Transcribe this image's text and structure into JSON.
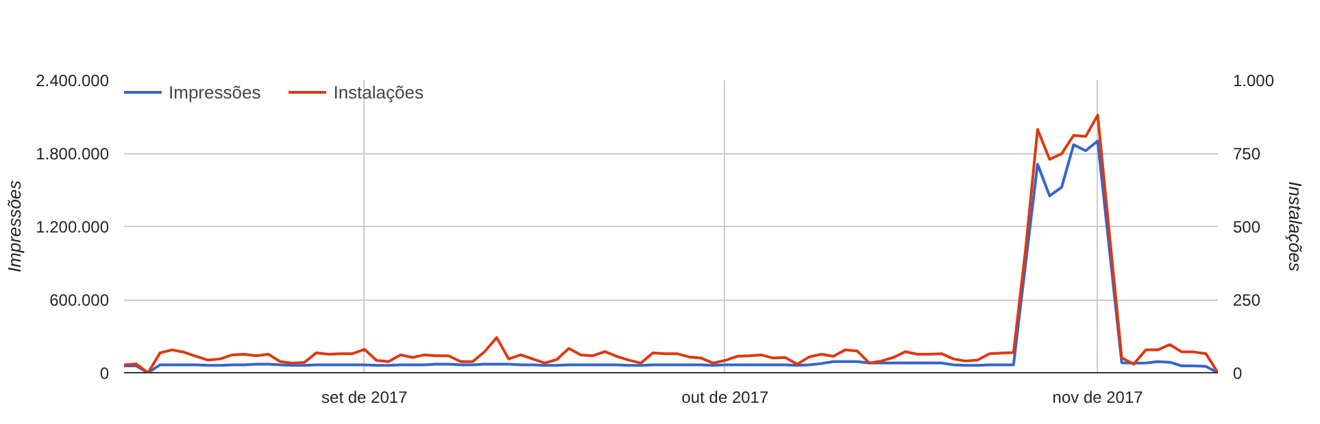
{
  "chart_data": {
    "type": "line",
    "ylabel": "Impressões",
    "y2label": "Instalações",
    "x": [
      "2017-08-12",
      "2017-08-13",
      "2017-08-14",
      "2017-08-15",
      "2017-08-16",
      "2017-08-17",
      "2017-08-18",
      "2017-08-19",
      "2017-08-20",
      "2017-08-21",
      "2017-08-22",
      "2017-08-23",
      "2017-08-24",
      "2017-08-25",
      "2017-08-26",
      "2017-08-27",
      "2017-08-28",
      "2017-08-29",
      "2017-08-30",
      "2017-08-31",
      "2017-09-01",
      "2017-09-02",
      "2017-09-03",
      "2017-09-04",
      "2017-09-05",
      "2017-09-06",
      "2017-09-07",
      "2017-09-08",
      "2017-09-09",
      "2017-09-10",
      "2017-09-11",
      "2017-09-12",
      "2017-09-13",
      "2017-09-14",
      "2017-09-15",
      "2017-09-16",
      "2017-09-17",
      "2017-09-18",
      "2017-09-19",
      "2017-09-20",
      "2017-09-21",
      "2017-09-22",
      "2017-09-23",
      "2017-09-24",
      "2017-09-25",
      "2017-09-26",
      "2017-09-27",
      "2017-09-28",
      "2017-09-29",
      "2017-09-30",
      "2017-10-01",
      "2017-10-02",
      "2017-10-03",
      "2017-10-04",
      "2017-10-05",
      "2017-10-06",
      "2017-10-07",
      "2017-10-08",
      "2017-10-09",
      "2017-10-10",
      "2017-10-11",
      "2017-10-12",
      "2017-10-13",
      "2017-10-14",
      "2017-10-15",
      "2017-10-16",
      "2017-10-17",
      "2017-10-18",
      "2017-10-19",
      "2017-10-20",
      "2017-10-21",
      "2017-10-22",
      "2017-10-23",
      "2017-10-24",
      "2017-10-25",
      "2017-10-26",
      "2017-10-27",
      "2017-10-28",
      "2017-10-29",
      "2017-10-30",
      "2017-10-31",
      "2017-11-01",
      "2017-11-02",
      "2017-11-03",
      "2017-11-04",
      "2017-11-05",
      "2017-11-06",
      "2017-11-07",
      "2017-11-08",
      "2017-11-09",
      "2017-11-10",
      "2017-11-11"
    ],
    "series": [
      {
        "name": "Impressões",
        "color": "#3366cc",
        "values": [
          56000,
          56000,
          0,
          65000,
          65000,
          65000,
          65000,
          60000,
          60000,
          65000,
          65000,
          70000,
          70000,
          65000,
          60000,
          60000,
          65000,
          65000,
          65000,
          65000,
          65000,
          60000,
          60000,
          65000,
          65000,
          65000,
          70000,
          70000,
          65000,
          65000,
          70000,
          70000,
          70000,
          65000,
          65000,
          60000,
          60000,
          65000,
          65000,
          65000,
          65000,
          65000,
          60000,
          60000,
          65000,
          65000,
          65000,
          65000,
          65000,
          60000,
          65000,
          65000,
          65000,
          65000,
          65000,
          65000,
          60000,
          65000,
          75000,
          91000,
          91000,
          91000,
          80000,
          80000,
          80000,
          80000,
          80000,
          80000,
          80000,
          65000,
          60000,
          60000,
          65000,
          65000,
          65000,
          890000,
          1710000,
          1450000,
          1520000,
          1870000,
          1820000,
          1900000,
          990000,
          82000,
          78000,
          80000,
          91000,
          86000,
          56000,
          56000,
          52000,
          0
        ]
      },
      {
        "name": "Instalações",
        "color": "#dc3912",
        "axis": "y2",
        "values": [
          27,
          30,
          0,
          68,
          78,
          70,
          56,
          43,
          47,
          61,
          63,
          58,
          63,
          38,
          33,
          35,
          68,
          63,
          65,
          65,
          80,
          42,
          38,
          61,
          52,
          61,
          58,
          58,
          38,
          38,
          72,
          120,
          47,
          61,
          47,
          33,
          45,
          83,
          61,
          58,
          72,
          56,
          43,
          33,
          68,
          65,
          65,
          54,
          50,
          33,
          42,
          56,
          58,
          61,
          50,
          52,
          29,
          54,
          63,
          56,
          78,
          74,
          33,
          40,
          52,
          72,
          63,
          63,
          65,
          47,
          40,
          43,
          65,
          67,
          69,
          420,
          831,
          729,
          748,
          811,
          807,
          880,
          465,
          51,
          29,
          78,
          78,
          96,
          71,
          71,
          65,
          0
        ]
      }
    ],
    "xlim": [
      "2017-08-12",
      "2017-11-11"
    ],
    "xticks": [
      {
        "value": "2017-09-01",
        "label": "set de 2017"
      },
      {
        "value": "2017-10-01",
        "label": "out de 2017"
      },
      {
        "value": "2017-11-01",
        "label": "nov de 2017"
      }
    ],
    "ylim": [
      0,
      2400000
    ],
    "yticks": [
      0,
      {
        "value": 600000,
        "label": "600.000"
      },
      {
        "value": 1200000,
        "label": "1.200.000"
      },
      {
        "value": 1800000,
        "label": "1.800.000"
      },
      {
        "value": 2400000,
        "label": "2.400.000"
      }
    ],
    "y2lim": [
      0,
      1000
    ],
    "y2ticks": [
      0,
      250,
      500,
      750,
      {
        "value": 1000,
        "label": "1.000"
      }
    ],
    "grid": true,
    "legend": "top left",
    "line_style": "solid",
    "marker": "none"
  }
}
